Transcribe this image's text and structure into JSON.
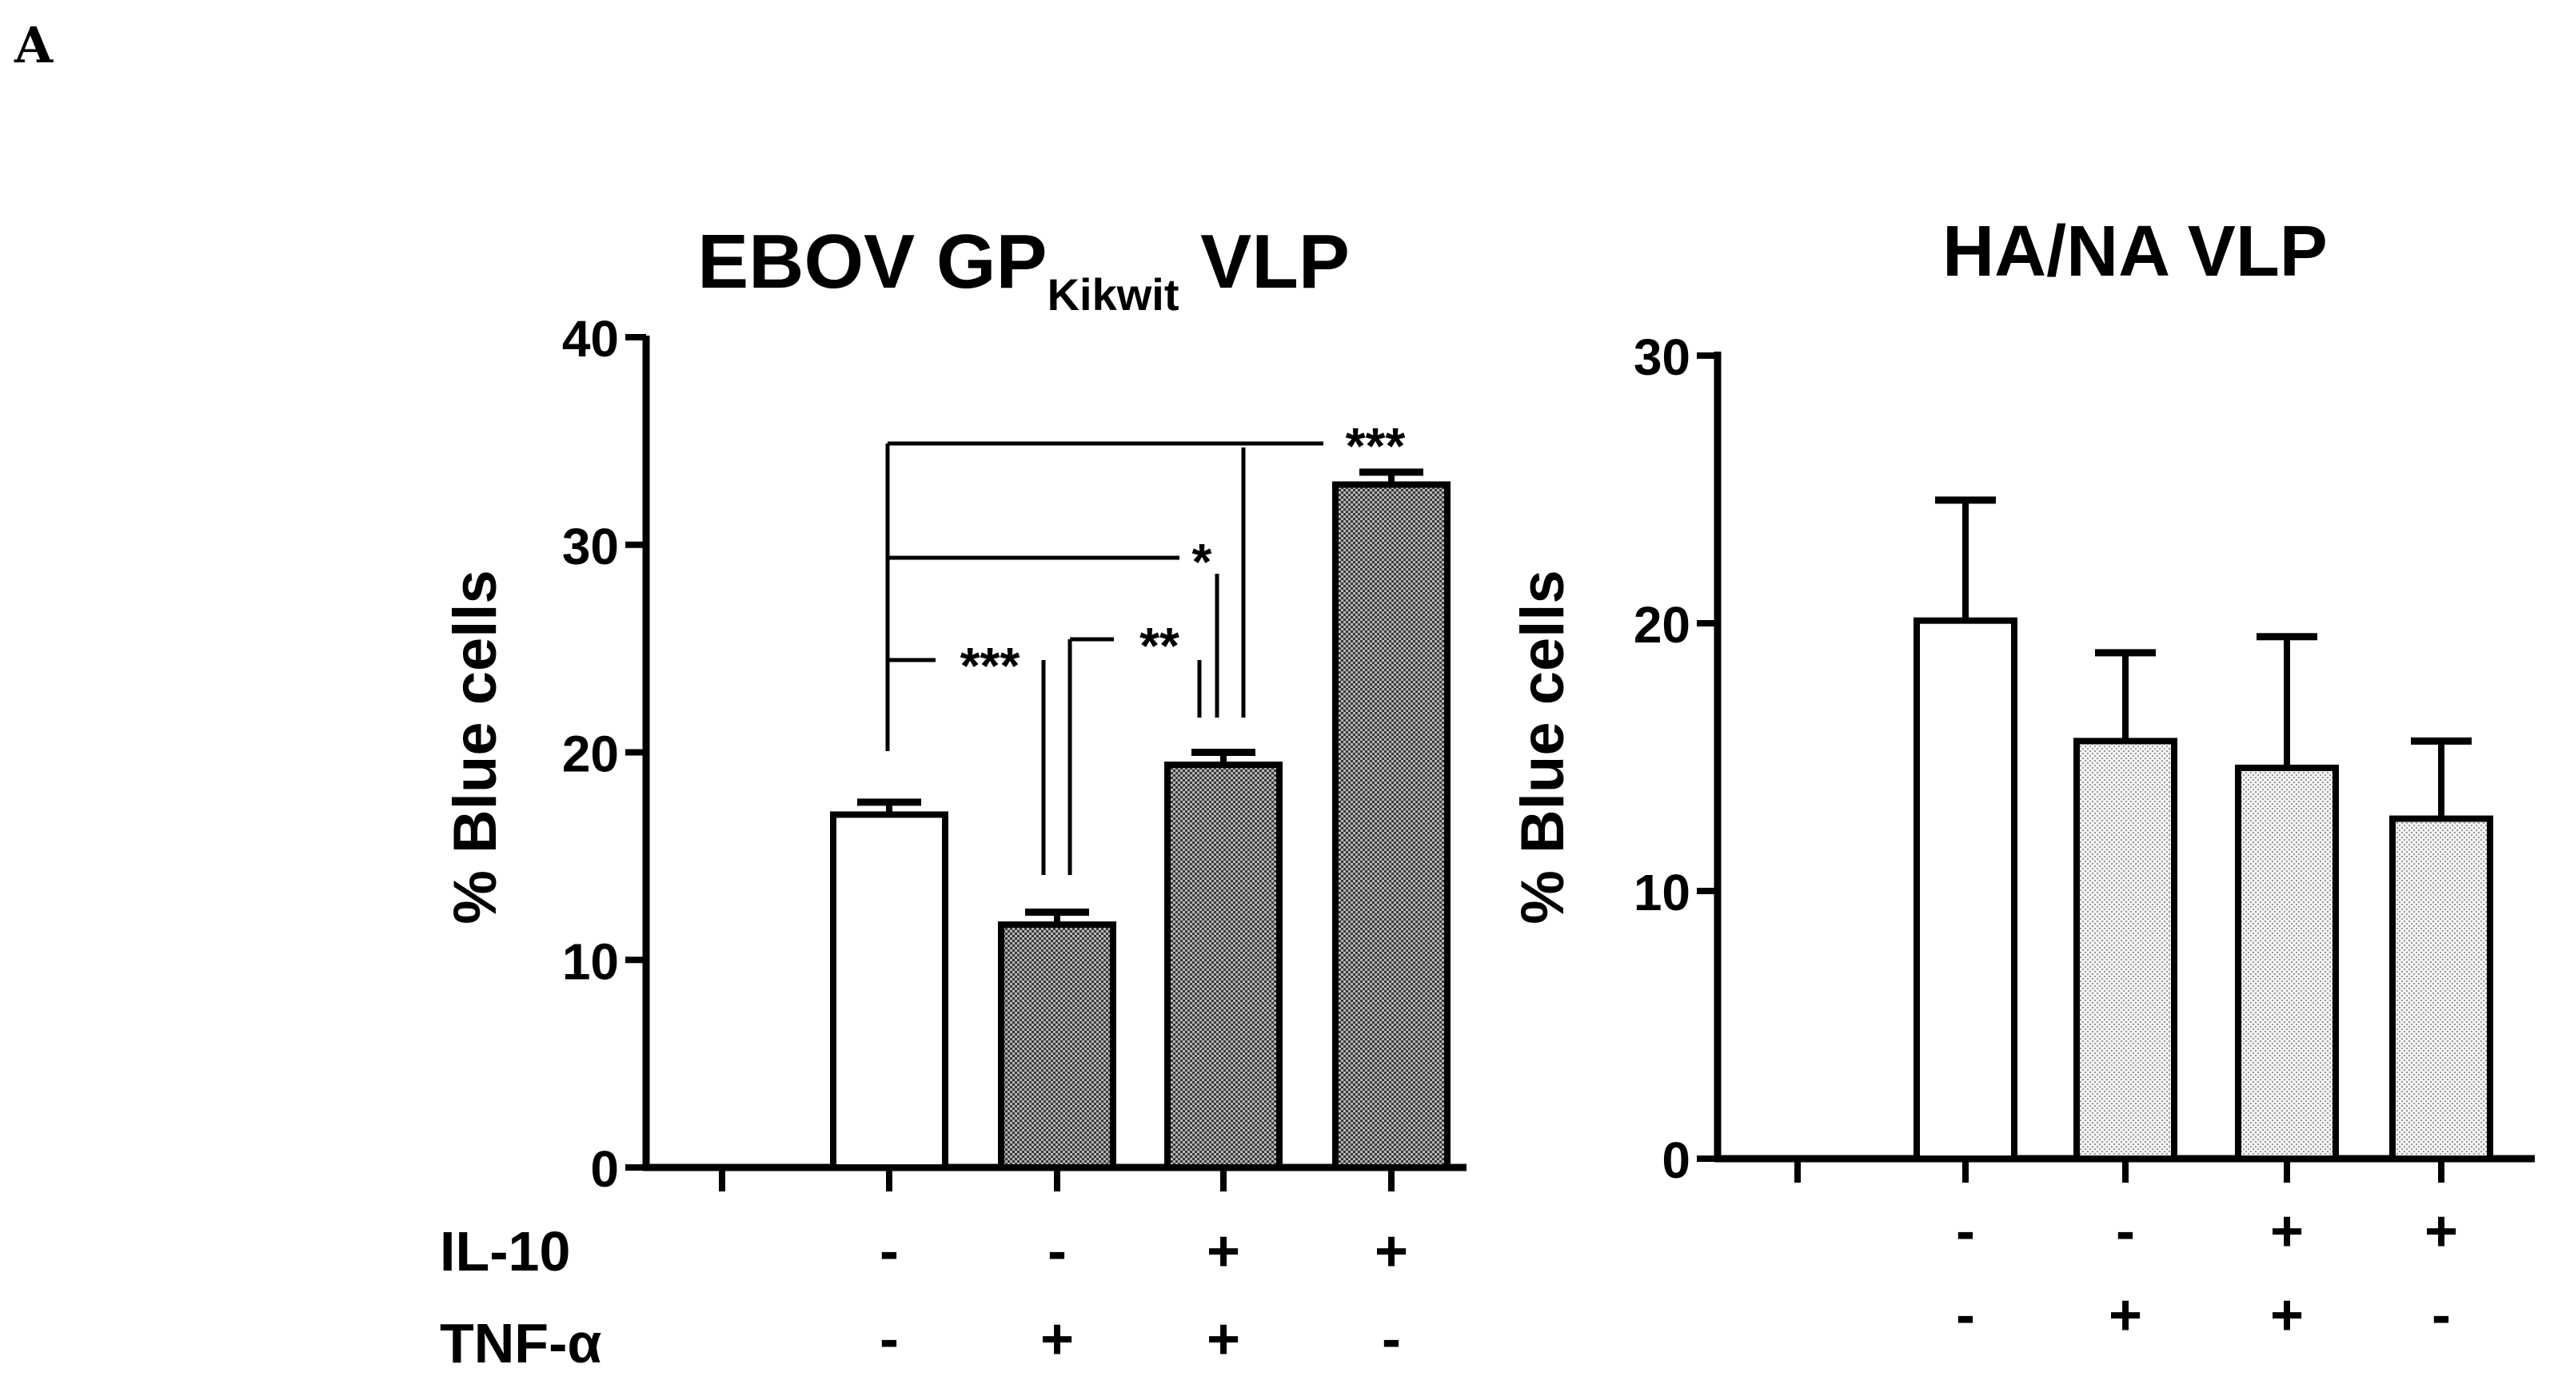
{
  "panel_label": "A",
  "chart_data": [
    {
      "type": "bar",
      "title": "EBOV GP",
      "title_subscript": "Kikwit",
      "title_suffix": " VLP",
      "ylabel": "% Blue cells",
      "ylim": [
        0,
        40
      ],
      "yticks": [
        "0",
        "10",
        "20",
        "30",
        "40"
      ],
      "values": [
        17.0,
        11.7,
        19.4,
        32.9
      ],
      "errors": [
        0.6,
        0.6,
        0.6,
        0.6
      ],
      "fills": [
        "white",
        "dark",
        "dark",
        "dark"
      ],
      "row_labels": [
        "IL-10",
        "TNF-α"
      ],
      "il10": [
        "-",
        "-",
        "+",
        "+"
      ],
      "tnf": [
        "-",
        "+",
        "+",
        "-"
      ],
      "significance": [
        "***",
        "*",
        "***",
        "**"
      ]
    },
    {
      "type": "bar",
      "title": "HA/NA VLP",
      "ylabel": "% Blue cells",
      "ylim": [
        0,
        30
      ],
      "yticks": [
        "0",
        "10",
        "20",
        "30"
      ],
      "values": [
        20.1,
        15.6,
        14.6,
        12.7
      ],
      "errors": [
        4.5,
        3.3,
        4.9,
        2.9
      ],
      "fills": [
        "white",
        "light",
        "light",
        "light"
      ],
      "il10": [
        "-",
        "-",
        "+",
        "+"
      ],
      "tnf": [
        "-",
        "+",
        "+",
        "-"
      ]
    }
  ]
}
